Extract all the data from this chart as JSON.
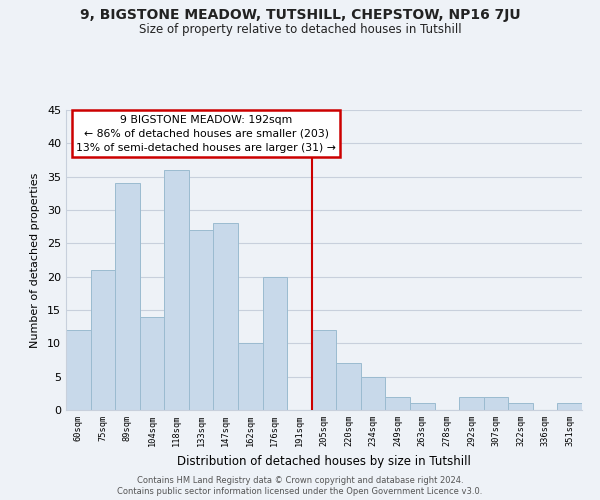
{
  "title": "9, BIGSTONE MEADOW, TUTSHILL, CHEPSTOW, NP16 7JU",
  "subtitle": "Size of property relative to detached houses in Tutshill",
  "xlabel": "Distribution of detached houses by size in Tutshill",
  "ylabel": "Number of detached properties",
  "bin_labels": [
    "60sqm",
    "75sqm",
    "89sqm",
    "104sqm",
    "118sqm",
    "133sqm",
    "147sqm",
    "162sqm",
    "176sqm",
    "191sqm",
    "205sqm",
    "220sqm",
    "234sqm",
    "249sqm",
    "263sqm",
    "278sqm",
    "292sqm",
    "307sqm",
    "322sqm",
    "336sqm",
    "351sqm"
  ],
  "bar_heights": [
    12,
    21,
    34,
    14,
    36,
    27,
    28,
    10,
    20,
    0,
    12,
    7,
    5,
    2,
    1,
    0,
    2,
    2,
    1,
    0,
    1
  ],
  "bar_color": "#c8d9ea",
  "bar_edge_color": "#9bbbd0",
  "vline_x_index": 9,
  "annotation_title": "9 BIGSTONE MEADOW: 192sqm",
  "annotation_line1": "← 86% of detached houses are smaller (203)",
  "annotation_line2": "13% of semi-detached houses are larger (31) →",
  "annotation_box_color": "#ffffff",
  "annotation_box_edge_color": "#cc0000",
  "vline_color": "#cc0000",
  "ylim": [
    0,
    45
  ],
  "yticks": [
    0,
    5,
    10,
    15,
    20,
    25,
    30,
    35,
    40,
    45
  ],
  "footer1": "Contains HM Land Registry data © Crown copyright and database right 2024.",
  "footer2": "Contains public sector information licensed under the Open Government Licence v3.0.",
  "bg_color": "#eef2f7",
  "plot_bg_color": "#eef2f7",
  "grid_color": "#c8d0dc"
}
